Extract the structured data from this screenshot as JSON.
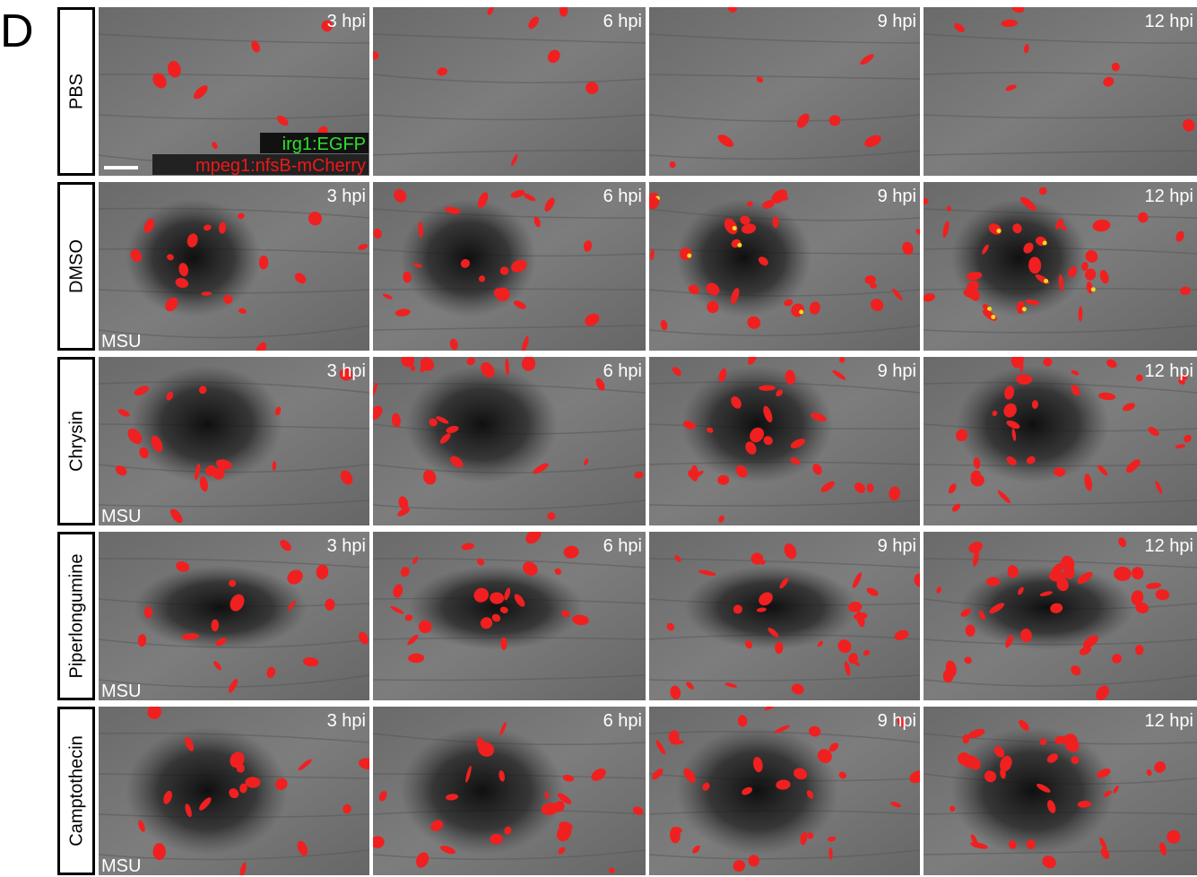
{
  "panel_label": "D",
  "legend": [
    "irg1:EGFP",
    "mpeg1:nfsB-mCherry"
  ],
  "rows": [
    {
      "label": "PBS",
      "times": [
        "3 hpi",
        "6 hpi",
        "9 hpi",
        "12 hpi"
      ]
    },
    {
      "label": "DMSO",
      "times": [
        "3 hpi",
        "6 hpi",
        "9 hpi",
        "12 hpi"
      ],
      "treatment": "MSU"
    },
    {
      "label": "Chrysin",
      "times": [
        "3 hpi",
        "6 hpi",
        "9 hpi",
        "12 hpi"
      ],
      "treatment": "MSU"
    },
    {
      "label": "Piperlongumine",
      "times": [
        "3 hpi",
        "6 hpi",
        "9 hpi",
        "12 hpi"
      ],
      "treatment": "MSU"
    },
    {
      "label": "Camptothecin",
      "times": [
        "3 hpi",
        "6 hpi",
        "9 hpi",
        "12 hpi"
      ],
      "treatment": "MSU"
    }
  ]
}
